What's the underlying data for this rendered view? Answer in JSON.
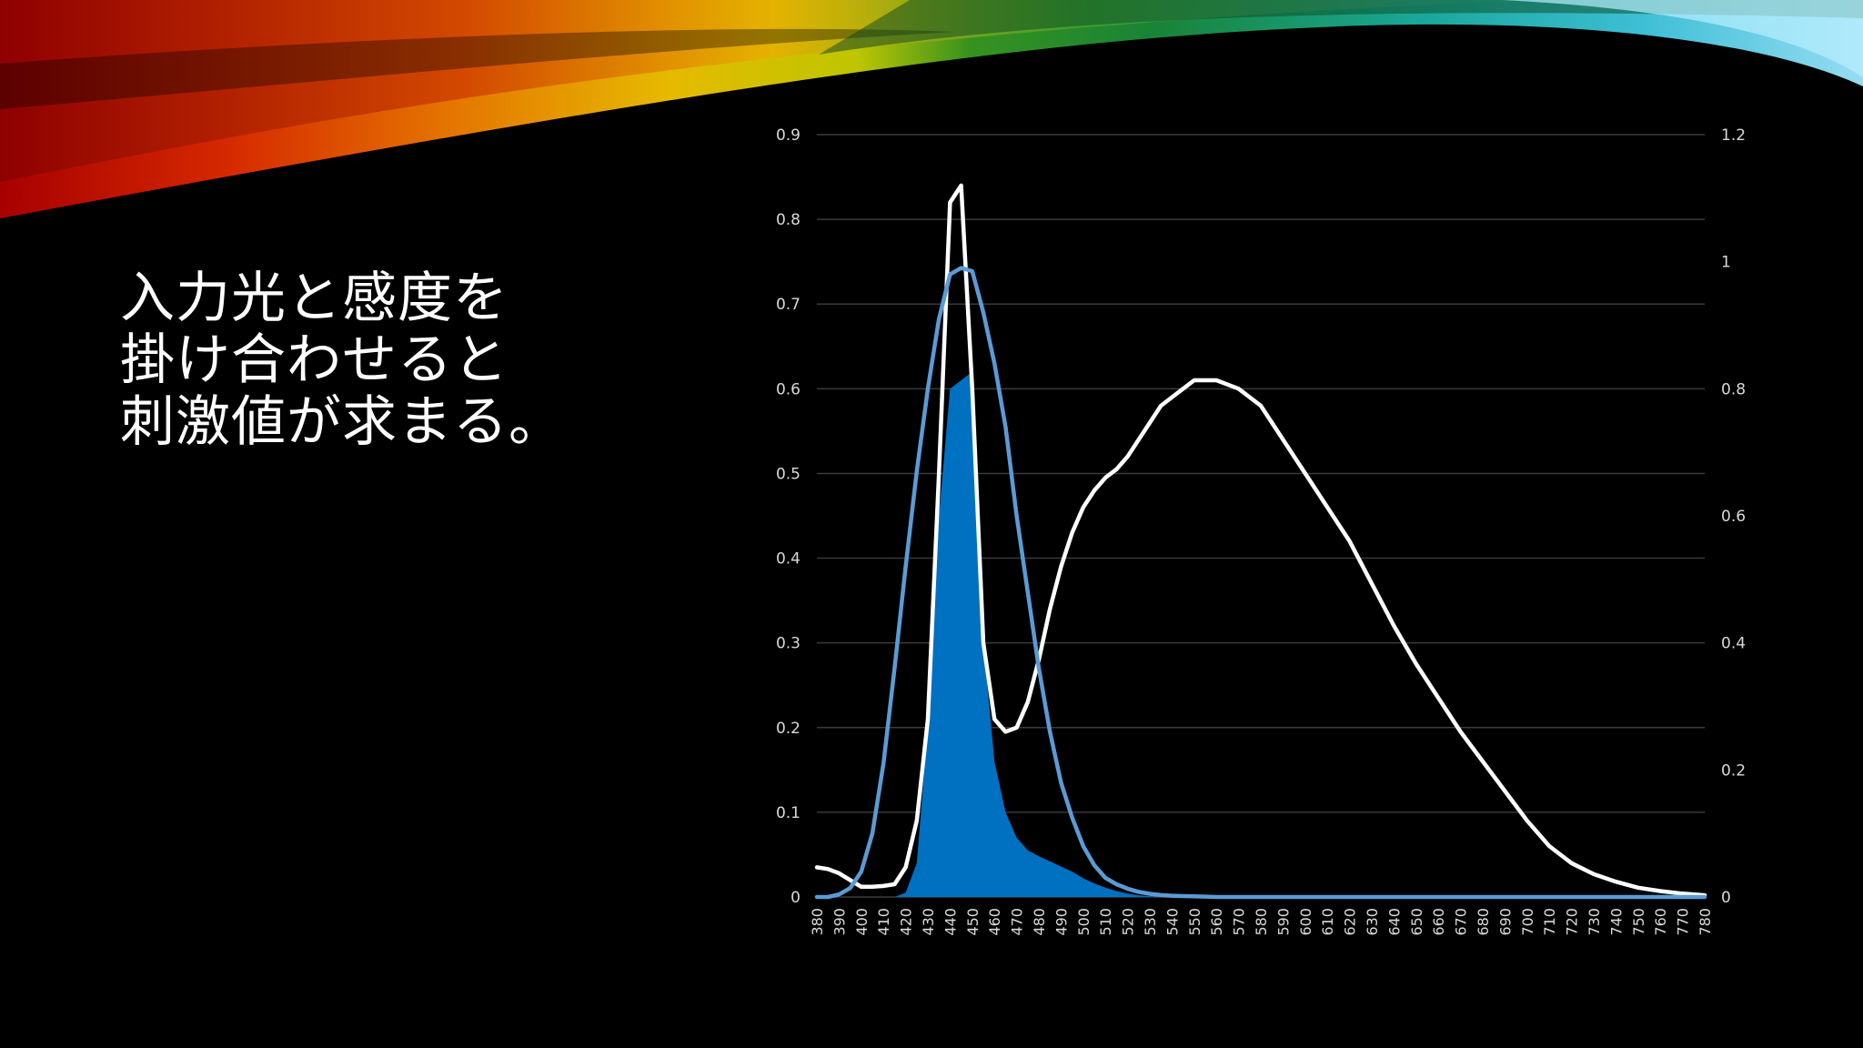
{
  "slide": {
    "title_lines": [
      "入力光と感度を",
      "掛け合わせると",
      "刺激値が求まる。"
    ]
  },
  "colors": {
    "background": "#000000",
    "grid": "#3a3a3a",
    "text": "#ffffff",
    "axis_text": "#d9d9d9",
    "blue_line": "#5b9bd5",
    "blue_fill": "#0070c0",
    "white_line": "#ffffff"
  },
  "chart_data": {
    "type": "line",
    "x": [
      380,
      385,
      390,
      395,
      400,
      405,
      410,
      415,
      420,
      425,
      430,
      435,
      440,
      445,
      450,
      455,
      460,
      465,
      470,
      475,
      480,
      485,
      490,
      495,
      500,
      505,
      510,
      515,
      520,
      525,
      530,
      535,
      540,
      545,
      550,
      560,
      570,
      580,
      590,
      600,
      610,
      620,
      630,
      640,
      650,
      660,
      670,
      680,
      690,
      700,
      710,
      720,
      730,
      740,
      750,
      760,
      770,
      780
    ],
    "x_ticks": [
      380,
      390,
      400,
      410,
      420,
      430,
      440,
      450,
      460,
      470,
      480,
      490,
      500,
      510,
      520,
      530,
      540,
      550,
      560,
      570,
      580,
      590,
      600,
      610,
      620,
      630,
      640,
      650,
      660,
      670,
      680,
      690,
      700,
      710,
      720,
      730,
      740,
      750,
      760,
      770,
      780
    ],
    "y_left_ticks": [
      "0",
      "0.1",
      "0.2",
      "0.3",
      "0.4",
      "0.5",
      "0.6",
      "0.7",
      "0.8",
      "0.9"
    ],
    "y_right_ticks": [
      "0",
      "0.2",
      "0.4",
      "0.6",
      "0.8",
      "1",
      "1.2"
    ],
    "ylim_left": [
      0,
      0.9
    ],
    "ylim_right": [
      0,
      1.2
    ],
    "grid": true,
    "series": [
      {
        "style": "area",
        "axis": "left",
        "color": "#0070c0",
        "values": [
          0,
          0,
          0,
          0,
          0,
          0,
          0,
          0,
          0.005,
          0.04,
          0.2,
          0.45,
          0.6,
          0.61,
          0.62,
          0.3,
          0.16,
          0.1,
          0.07,
          0.055,
          0.048,
          0.042,
          0.036,
          0.03,
          0.022,
          0.016,
          0.011,
          0.007,
          0.004,
          0.002,
          0.001,
          0,
          0,
          0,
          0,
          0,
          0,
          0,
          0,
          0,
          0,
          0,
          0,
          0,
          0,
          0,
          0,
          0,
          0,
          0,
          0,
          0,
          0,
          0,
          0,
          0,
          0,
          0
        ]
      },
      {
        "style": "line",
        "axis": "left",
        "color": "#ffffff",
        "values": [
          0.035,
          0.033,
          0.028,
          0.02,
          0.012,
          0.012,
          0.013,
          0.015,
          0.035,
          0.09,
          0.21,
          0.5,
          0.82,
          0.84,
          0.6,
          0.3,
          0.21,
          0.195,
          0.2,
          0.23,
          0.28,
          0.34,
          0.39,
          0.43,
          0.46,
          0.48,
          0.495,
          0.505,
          0.52,
          0.54,
          0.56,
          0.58,
          0.59,
          0.6,
          0.61,
          0.61,
          0.6,
          0.58,
          0.54,
          0.5,
          0.46,
          0.42,
          0.37,
          0.32,
          0.275,
          0.235,
          0.195,
          0.16,
          0.125,
          0.09,
          0.06,
          0.04,
          0.027,
          0.018,
          0.011,
          0.007,
          0.004,
          0.002
        ]
      },
      {
        "style": "line",
        "axis": "right",
        "color": "#5b9bd5",
        "values": [
          0,
          0,
          0.004,
          0.014,
          0.04,
          0.1,
          0.21,
          0.36,
          0.52,
          0.67,
          0.8,
          0.91,
          0.98,
          0.99,
          0.985,
          0.92,
          0.84,
          0.74,
          0.6,
          0.48,
          0.36,
          0.26,
          0.18,
          0.125,
          0.08,
          0.05,
          0.03,
          0.02,
          0.013,
          0.008,
          0.005,
          0.003,
          0.002,
          0.0015,
          0.001,
          0,
          0,
          0,
          0,
          0,
          0,
          0,
          0,
          0,
          0,
          0,
          0,
          0,
          0,
          0,
          0,
          0,
          0,
          0,
          0,
          0,
          0,
          0
        ]
      }
    ]
  }
}
